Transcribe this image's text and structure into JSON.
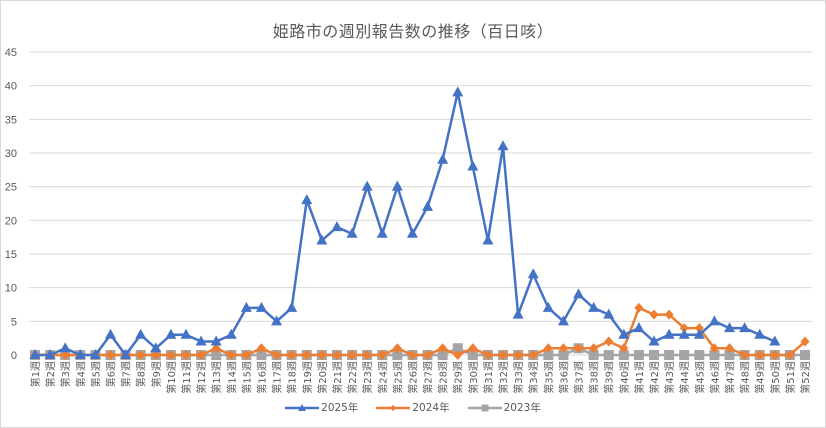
{
  "chart_data": {
    "type": "line",
    "title": "姫路市の週別報告数の推移（百日咳）",
    "xlabel": "",
    "ylabel": "",
    "ylim": [
      0,
      45
    ],
    "yticks": [
      0,
      5,
      10,
      15,
      20,
      25,
      30,
      35,
      40,
      45
    ],
    "grid": true,
    "legend_position": "bottom",
    "categories": [
      "第1週",
      "第2週",
      "第3週",
      "第4週",
      "第5週",
      "第6週",
      "第7週",
      "第8週",
      "第9週",
      "第10週",
      "第11週",
      "第12週",
      "第13週",
      "第14週",
      "第15週",
      "第16週",
      "第17週",
      "第18週",
      "第19週",
      "第20週",
      "第21週",
      "第22週",
      "第23週",
      "第24週",
      "第25週",
      "第26週",
      "第27週",
      "第28週",
      "第29週",
      "第30週",
      "第31週",
      "第32週",
      "第33週",
      "第34週",
      "第35週",
      "第36週",
      "第37週",
      "第38週",
      "第39週",
      "第40週",
      "第41週",
      "第42週",
      "第43週",
      "第44週",
      "第45週",
      "第46週",
      "第47週",
      "第48週",
      "第49週",
      "第50週",
      "第51週",
      "第52週"
    ],
    "series": [
      {
        "name": "2025年",
        "color": "#4472c4",
        "marker": "triangle",
        "values": [
          0,
          0,
          1,
          0,
          0,
          3,
          0,
          3,
          1,
          3,
          3,
          2,
          2,
          3,
          7,
          7,
          5,
          7,
          23,
          17,
          19,
          18,
          25,
          18,
          25,
          18,
          22,
          29,
          39,
          28,
          17,
          31,
          6,
          12,
          7,
          5,
          9,
          7,
          6,
          3,
          4,
          2,
          3,
          3,
          3,
          5,
          4,
          4,
          3,
          2,
          null,
          null
        ]
      },
      {
        "name": "2024年",
        "color": "#ed7d31",
        "marker": "diamond",
        "values": [
          0,
          0,
          0,
          0,
          0,
          0,
          0,
          0,
          0,
          0,
          0,
          0,
          1,
          0,
          0,
          1,
          0,
          0,
          0,
          0,
          0,
          0,
          0,
          0,
          1,
          0,
          0,
          1,
          0,
          1,
          0,
          0,
          0,
          0,
          1,
          1,
          1,
          1,
          2,
          1,
          7,
          6,
          6,
          4,
          4,
          1,
          1,
          0,
          0,
          0,
          0,
          2
        ]
      },
      {
        "name": "2023年",
        "color": "#a5a5a5",
        "marker": "square",
        "values": [
          0,
          0,
          0,
          0,
          0,
          0,
          0,
          0,
          0,
          0,
          0,
          0,
          0,
          0,
          0,
          0,
          0,
          0,
          0,
          0,
          0,
          0,
          0,
          0,
          0,
          0,
          0,
          0,
          1,
          0,
          0,
          0,
          0,
          0,
          0,
          0,
          1,
          0,
          0,
          0,
          0,
          0,
          0,
          0,
          0,
          0,
          0,
          0,
          0,
          0,
          0,
          0
        ]
      }
    ]
  },
  "legend": {
    "items": [
      {
        "label": "2025年",
        "color": "#4472c4"
      },
      {
        "label": "2024年",
        "color": "#ed7d31"
      },
      {
        "label": "2023年",
        "color": "#a5a5a5"
      }
    ]
  }
}
